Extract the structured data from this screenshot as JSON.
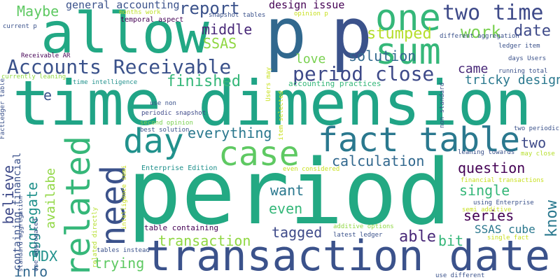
{
  "palette": {
    "purple": "#440154",
    "indigo": "#3b528b",
    "blue": "#31688e",
    "teal": "#21918c",
    "green": "#35b779",
    "lime": "#5ec962",
    "yellow": "#90d743",
    "bright": "#c8e020"
  },
  "words": [
    {
      "text": "time dimension",
      "color": "#20a486"
    },
    {
      "text": "period",
      "color": "#23a983"
    },
    {
      "text": "transaction date",
      "color": "#3b528b"
    },
    {
      "text": "allow",
      "color": "#22a884"
    },
    {
      "text": "p",
      "color": "#31688e"
    },
    {
      "text": "p",
      "color": "#3b528b"
    },
    {
      "text": "one",
      "color": "#35b779"
    },
    {
      "text": "sum",
      "color": "#35b779"
    },
    {
      "text": "fact table",
      "color": "#2a788e"
    },
    {
      "text": "case",
      "color": "#5ec962"
    },
    {
      "text": "day",
      "color": "#21918c"
    },
    {
      "text": "need",
      "color": "#3b528b"
    },
    {
      "text": "related",
      "color": "#35b779"
    },
    {
      "text": "Accounts Receivable",
      "color": "#3b528b"
    },
    {
      "text": "two time",
      "color": "#3e4a89"
    },
    {
      "text": "period close",
      "color": "#3e4a89"
    },
    {
      "text": "work",
      "color": "#7ad151"
    },
    {
      "text": "date",
      "color": "#3e4a89"
    },
    {
      "text": "stumped",
      "color": "#b5de2b"
    },
    {
      "text": "report",
      "color": "#3b528b"
    },
    {
      "text": "middle",
      "color": "#482878"
    },
    {
      "text": "SSAS",
      "color": "#90d743"
    },
    {
      "text": "solution",
      "color": "#31688e"
    },
    {
      "text": "love",
      "color": "#7ad151"
    },
    {
      "text": "came",
      "color": "#482878"
    },
    {
      "text": "tricky design",
      "color": "#2a788e"
    },
    {
      "text": "Maybe",
      "color": "#5ec962"
    },
    {
      "text": "general accounting",
      "color": "#3b528b"
    },
    {
      "text": "design issue",
      "color": "#440154"
    },
    {
      "text": "finished",
      "color": "#35b779"
    },
    {
      "text": "everything",
      "color": "#2a788e"
    },
    {
      "text": "calculation",
      "color": "#31688e"
    },
    {
      "text": "question",
      "color": "#440154"
    },
    {
      "text": "two",
      "color": "#3e4a89"
    },
    {
      "text": "single",
      "color": "#35b779"
    },
    {
      "text": "want",
      "color": "#2a788e"
    },
    {
      "text": "even",
      "color": "#35b779"
    },
    {
      "text": "series",
      "color": "#440154"
    },
    {
      "text": "tagged",
      "color": "#3e4a89"
    },
    {
      "text": "able",
      "color": "#482878"
    },
    {
      "text": "bit",
      "color": "#35b779"
    },
    {
      "text": "SSAS cube",
      "color": "#2a788e"
    },
    {
      "text": "transaction",
      "color": "#90d743"
    },
    {
      "text": "trying",
      "color": "#5ec962"
    },
    {
      "text": "MDX",
      "color": "#21918c"
    },
    {
      "text": "info",
      "color": "#31688e"
    },
    {
      "text": "believe",
      "color": "#3e4a89"
    },
    {
      "text": "aggregate",
      "color": "#21918c"
    },
    {
      "text": "availabe",
      "color": "#90d743"
    },
    {
      "text": "containing financial",
      "color": "#3b528b"
    },
    {
      "text": "know",
      "color": "#2a788e"
    },
    {
      "text": "e",
      "color": "#3b528b"
    },
    {
      "text": "months work",
      "color": "#bddf26"
    },
    {
      "text": "temporal aspect",
      "color": "#440154"
    },
    {
      "text": "snapshot tables",
      "color": "#3b528b"
    },
    {
      "text": "opinion p",
      "color": "#c8e020"
    },
    {
      "text": "current p",
      "color": "#3b528b"
    },
    {
      "text": "different aggregation",
      "color": "#3b528b"
    },
    {
      "text": "ledger item",
      "color": "#3b528b"
    },
    {
      "text": "days Users",
      "color": "#3b528b"
    },
    {
      "text": "running total",
      "color": "#3b528b"
    },
    {
      "text": "Receivable AR",
      "color": "#440154"
    },
    {
      "text": "currently leaning",
      "color": "#90d743"
    },
    {
      "text": "time intelligence",
      "color": "#21918c"
    },
    {
      "text": "accounting practices",
      "color": "#35b779"
    },
    {
      "text": "use non",
      "color": "#3b528b"
    },
    {
      "text": "periodic snapshot",
      "color": "#3e4a89"
    },
    {
      "text": "second opinion",
      "color": "#7ad151"
    },
    {
      "text": "best solution",
      "color": "#3b528b"
    },
    {
      "text": "two periodic",
      "color": "#3b528b"
    },
    {
      "text": "leaning towards",
      "color": "#3b528b"
    },
    {
      "text": "may close",
      "color": "#b5de2b"
    },
    {
      "text": "Enterprise Edition",
      "color": "#21918c"
    },
    {
      "text": "even considered",
      "color": "#c8e020"
    },
    {
      "text": "financial transactions",
      "color": "#c8e020"
    },
    {
      "text": "using Enterprise",
      "color": "#3b528b"
    },
    {
      "text": "semi additive",
      "color": "#c8e020"
    },
    {
      "text": "single fact",
      "color": "#c8e020"
    },
    {
      "text": "table containing",
      "color": "#440154"
    },
    {
      "text": "additive options",
      "color": "#90d743"
    },
    {
      "text": "latest ledger",
      "color": "#3b528b"
    },
    {
      "text": "tables instead",
      "color": "#3b528b"
    },
    {
      "text": "use different",
      "color": "#3b528b"
    },
    {
      "text": "FactLedger table",
      "color": "#3b528b"
    },
    {
      "text": "one aggregated",
      "color": "#3b528b"
    },
    {
      "text": "standard aggregation",
      "color": "#3b528b"
    },
    {
      "text": "related directly",
      "color": "#b5de2b"
    },
    {
      "text": "intelligence semi",
      "color": "#c8e020"
    },
    {
      "text": "Users may",
      "color": "#c8e020"
    },
    {
      "text": "item selected",
      "color": "#c8e020"
    },
    {
      "text": "non standard",
      "color": "#3b528b"
    }
  ]
}
